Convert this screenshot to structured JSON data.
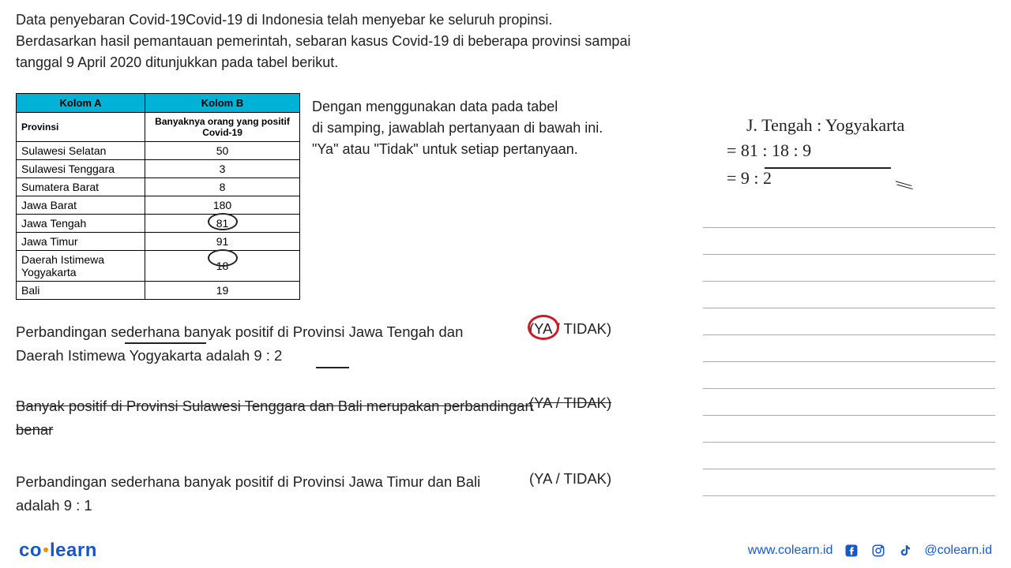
{
  "intro": "Data penyebaran Covid-19Covid-19 di Indonesia telah menyebar ke seluruh propinsi. Berdasarkan hasil pemantauan pemerintah, sebaran kasus Covid-19 di beberapa provinsi sampai tanggal 9 April 2020 ditunjukkan pada tabel berikut.",
  "table": {
    "header_a": "Kolom A",
    "header_b": "Kolom B",
    "subhead_a": "Provinsi",
    "subhead_b": "Banyaknya orang yang positif Covid-19",
    "header_bg": "#00b3d6",
    "rows": [
      {
        "provinsi": "Sulawesi Selatan",
        "count": "50"
      },
      {
        "provinsi": "Sulawesi Tenggara",
        "count": "3"
      },
      {
        "provinsi": "Sumatera Barat",
        "count": "8"
      },
      {
        "provinsi": "Jawa Barat",
        "count": "180"
      },
      {
        "provinsi": "Jawa Tengah",
        "count": "81"
      },
      {
        "provinsi": "Jawa Timur",
        "count": "91"
      },
      {
        "provinsi": "Daerah Istimewa Yogyakarta",
        "count": "18"
      },
      {
        "provinsi": "Bali",
        "count": "19"
      }
    ],
    "circled_rows": [
      4,
      6
    ]
  },
  "instruction": {
    "line1": "Dengan menggunakan data pada tabel",
    "line2": "di samping, jawablah pertanyaan di bawah ini.",
    "line3": "\"Ya\" atau \"Tidak\" untuk setiap pertanyaan."
  },
  "handwriting": {
    "line1": "J. Tengah  :  Yogyakarta",
    "line2": "=   81    :    18  : 9",
    "line3": "=    9   :    2",
    "color": "#222222"
  },
  "questions": {
    "q1": "Perbandingan sederhana banyak positif di Provinsi Jawa Tengah dan Daerah Istimewa Yogyakarta adalah 9 : 2",
    "q2": "Banyak positif di Provinsi Sulawesi Tenggara dan Bali merupakan perbandingan benar",
    "q3": "Perbandingan sederhana banyak positif di Provinsi Jawa Timur dan Bali adalah 9 : 1",
    "a1": "(YA / TIDAK)",
    "a2": "(YA / TIDAK)",
    "a3": "(YA / TIDAK)",
    "circle_color": "#c81f27"
  },
  "footer": {
    "logo_co": "co",
    "logo_learn": "learn",
    "url": "www.colearn.id",
    "handle": "@colearn.id",
    "blue": "#1758c9",
    "orange": "#ff8a00"
  }
}
